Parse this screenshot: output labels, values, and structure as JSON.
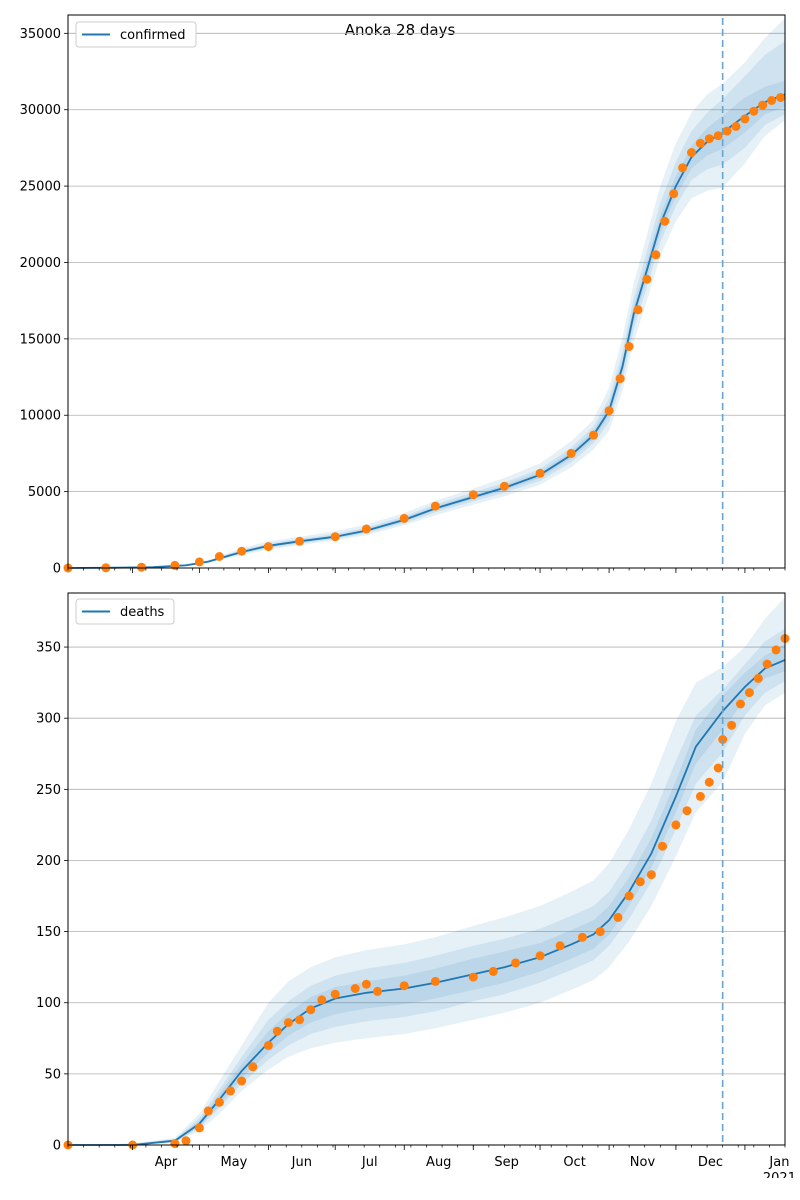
{
  "figure": {
    "title": "Anoka 28 days",
    "colors": {
      "line": "#1f77b4",
      "points": "#ff7f0e",
      "band": "#1f77b4",
      "vline": "#6aa3cc",
      "grid": "#b0b0b0"
    }
  },
  "chart_data": [
    {
      "type": "line",
      "legend": "confirmed",
      "legend_location": "upper left",
      "grid": "horizontal",
      "xlim": [
        "2020-03-03",
        "2021-01-19"
      ],
      "ylim": [
        0,
        36200
      ],
      "yticks": [
        0,
        5000,
        10000,
        15000,
        20000,
        25000,
        30000,
        35000
      ],
      "xticks": [],
      "forecast_start": "2020-12-22",
      "model_line": {
        "x": [
          "2020-03-03",
          "2020-03-25",
          "2020-04-10",
          "2020-04-25",
          "2020-05-05",
          "2020-05-20",
          "2020-06-01",
          "2020-06-15",
          "2020-07-01",
          "2020-07-15",
          "2020-08-01",
          "2020-08-15",
          "2020-09-01",
          "2020-09-15",
          "2020-10-01",
          "2020-10-15",
          "2020-10-25",
          "2020-11-01",
          "2020-11-07",
          "2020-11-12",
          "2020-11-18",
          "2020-11-24",
          "2020-12-01",
          "2020-12-08",
          "2020-12-15",
          "2020-12-22",
          "2021-01-01",
          "2021-01-10",
          "2021-01-19"
        ],
        "y": [
          0,
          20,
          60,
          180,
          420,
          1050,
          1450,
          1750,
          2050,
          2450,
          3150,
          3900,
          4650,
          5250,
          6100,
          7400,
          8700,
          10300,
          13200,
          16600,
          19500,
          22500,
          25000,
          26900,
          27900,
          28500,
          29600,
          30500,
          31000
        ]
      },
      "points": {
        "x": [
          "2020-03-03",
          "2020-03-20",
          "2020-04-05",
          "2020-04-20",
          "2020-05-01",
          "2020-05-10",
          "2020-05-20",
          "2020-06-01",
          "2020-06-15",
          "2020-07-01",
          "2020-07-15",
          "2020-08-01",
          "2020-08-15",
          "2020-09-01",
          "2020-09-15",
          "2020-10-01",
          "2020-10-15",
          "2020-10-25",
          "2020-11-01",
          "2020-11-06",
          "2020-11-10",
          "2020-11-14",
          "2020-11-18",
          "2020-11-22",
          "2020-11-26",
          "2020-11-30",
          "2020-12-04",
          "2020-12-08",
          "2020-12-12",
          "2020-12-16",
          "2020-12-20",
          "2020-12-24",
          "2020-12-28",
          "2021-01-01",
          "2021-01-05",
          "2021-01-09",
          "2021-01-13",
          "2021-01-17"
        ],
        "y": [
          0,
          10,
          50,
          170,
          400,
          750,
          1100,
          1400,
          1750,
          2050,
          2550,
          3250,
          4050,
          4800,
          5350,
          6200,
          7500,
          8700,
          10300,
          12400,
          14500,
          16900,
          18900,
          20500,
          22700,
          24500,
          26200,
          27200,
          27800,
          28100,
          28300,
          28600,
          28900,
          29400,
          29900,
          30300,
          30600,
          30800
        ]
      },
      "bands": [
        {
          "q": "2.5-97.5",
          "lower": [
            0,
            15,
            45,
            140,
            330,
            850,
            1200,
            1500,
            1800,
            2150,
            2800,
            3450,
            4150,
            4700,
            5450,
            6600,
            7750,
            9000,
            11600,
            14800,
            17500,
            20400,
            22700,
            24200,
            24700,
            24900,
            26500,
            28300,
            29300
          ],
          "upper": [
            0,
            30,
            80,
            230,
            520,
            1300,
            1750,
            2050,
            2400,
            2850,
            3600,
            4400,
            5200,
            5900,
            6850,
            8300,
            9700,
            11800,
            15100,
            18600,
            21800,
            25000,
            27800,
            29800,
            31000,
            31700,
            33100,
            34700,
            36000
          ]
        },
        {
          "q": "10-90",
          "lower": [
            0,
            17,
            50,
            155,
            370,
            920,
            1300,
            1600,
            1900,
            2280,
            2930,
            3640,
            4360,
            4930,
            5700,
            6920,
            8150,
            9550,
            12300,
            15600,
            18400,
            21300,
            23700,
            25400,
            26100,
            26400,
            27500,
            29000,
            29700
          ],
          "upper": [
            0,
            26,
            72,
            210,
            475,
            1190,
            1610,
            1910,
            2230,
            2650,
            3390,
            4170,
            4950,
            5590,
            6500,
            7880,
            9260,
            11100,
            14150,
            17650,
            20750,
            23900,
            26600,
            28600,
            29800,
            30700,
            32200,
            33600,
            34500
          ]
        },
        {
          "q": "25-75",
          "lower": [
            0,
            18,
            55,
            168,
            395,
            985,
            1375,
            1675,
            1970,
            2360,
            3030,
            3770,
            4500,
            5080,
            5900,
            7160,
            8420,
            9930,
            12750,
            16100,
            18950,
            21900,
            24350,
            26150,
            27000,
            27450,
            28500,
            29700,
            30200
          ],
          "upper": [
            0,
            22,
            66,
            195,
            450,
            1120,
            1530,
            1830,
            2130,
            2550,
            3270,
            4040,
            4800,
            5420,
            6300,
            7640,
            8980,
            10700,
            13650,
            17100,
            20050,
            23100,
            25650,
            27650,
            28800,
            29600,
            30800,
            31500,
            31900
          ]
        }
      ]
    },
    {
      "type": "line",
      "legend": "deaths",
      "legend_location": "upper left",
      "grid": "horizontal",
      "xlim": [
        "2020-03-03",
        "2021-01-19"
      ],
      "ylim": [
        0,
        388
      ],
      "yticks": [
        0,
        50,
        100,
        150,
        200,
        250,
        300,
        350
      ],
      "xticks": [
        "Apr",
        "May",
        "Jun",
        "Jul",
        "Aug",
        "Sep",
        "Oct",
        "Nov",
        "Dec",
        "Jan"
      ],
      "xtick_dates": [
        "2020-04-01",
        "2020-05-01",
        "2020-06-01",
        "2020-07-01",
        "2020-08-01",
        "2020-09-01",
        "2020-10-01",
        "2020-11-01",
        "2020-12-01",
        "2021-01-01"
      ],
      "year_label": "2021",
      "forecast_start": "2020-12-22",
      "model_line": {
        "x": [
          "2020-03-03",
          "2020-04-01",
          "2020-04-20",
          "2020-05-01",
          "2020-05-10",
          "2020-05-20",
          "2020-06-01",
          "2020-06-10",
          "2020-06-20",
          "2020-07-01",
          "2020-07-15",
          "2020-08-01",
          "2020-08-15",
          "2020-09-01",
          "2020-09-15",
          "2020-10-01",
          "2020-10-15",
          "2020-10-25",
          "2020-11-01",
          "2020-11-10",
          "2020-11-20",
          "2020-12-01",
          "2020-12-10",
          "2020-12-22",
          "2021-01-01",
          "2021-01-10",
          "2021-01-19"
        ],
        "y": [
          0,
          0,
          3,
          15,
          32,
          52,
          72,
          85,
          96,
          103,
          107,
          110,
          114,
          120,
          125,
          132,
          141,
          148,
          158,
          178,
          205,
          245,
          280,
          305,
          322,
          335,
          341
        ]
      },
      "points": {
        "x": [
          "2020-03-03",
          "2020-04-01",
          "2020-04-20",
          "2020-04-25",
          "2020-05-01",
          "2020-05-05",
          "2020-05-10",
          "2020-05-15",
          "2020-05-20",
          "2020-05-25",
          "2020-06-01",
          "2020-06-05",
          "2020-06-10",
          "2020-06-15",
          "2020-06-20",
          "2020-06-25",
          "2020-07-01",
          "2020-07-10",
          "2020-07-15",
          "2020-07-20",
          "2020-08-01",
          "2020-08-15",
          "2020-09-01",
          "2020-09-10",
          "2020-09-20",
          "2020-10-01",
          "2020-10-10",
          "2020-10-20",
          "2020-10-28",
          "2020-11-05",
          "2020-11-10",
          "2020-11-15",
          "2020-11-20",
          "2020-11-25",
          "2020-12-01",
          "2020-12-06",
          "2020-12-12",
          "2020-12-16",
          "2020-12-20",
          "2020-12-22",
          "2020-12-26",
          "2020-12-30",
          "2021-01-03",
          "2021-01-07",
          "2021-01-11",
          "2021-01-15",
          "2021-01-19"
        ],
        "y": [
          0,
          0,
          1,
          3,
          12,
          24,
          30,
          38,
          45,
          55,
          70,
          80,
          86,
          88,
          95,
          102,
          106,
          110,
          113,
          108,
          112,
          115,
          118,
          122,
          128,
          133,
          140,
          146,
          150,
          160,
          175,
          185,
          190,
          210,
          225,
          235,
          245,
          255,
          265,
          285,
          295,
          310,
          318,
          328,
          338,
          348,
          356
        ]
      },
      "bands": [
        {
          "q": "2.5-97.5",
          "lower": [
            0,
            0,
            2,
            10,
            22,
            38,
            53,
            62,
            68,
            72,
            75,
            78,
            82,
            88,
            93,
            100,
            109,
            116,
            125,
            143,
            168,
            203,
            234,
            255,
            289,
            309,
            318
          ],
          "upper": [
            0,
            1,
            5,
            22,
            45,
            70,
            100,
            115,
            125,
            132,
            137,
            141,
            146,
            154,
            160,
            168,
            178,
            186,
            198,
            222,
            254,
            298,
            325,
            336,
            350,
            370,
            385
          ]
        },
        {
          "q": "10-90",
          "lower": [
            0,
            0,
            2,
            12,
            26,
            43,
            60,
            70,
            78,
            83,
            87,
            90,
            94,
            101,
            106,
            114,
            123,
            130,
            140,
            159,
            185,
            222,
            254,
            276,
            302,
            318,
            326
          ],
          "upper": [
            0,
            1,
            4,
            19,
            39,
            62,
            88,
            101,
            112,
            119,
            124,
            128,
            133,
            140,
            145,
            152,
            161,
            168,
            178,
            199,
            228,
            270,
            302,
            320,
            338,
            354,
            363
          ]
        },
        {
          "q": "25-75",
          "lower": [
            0,
            0,
            2,
            13,
            28,
            47,
            65,
            77,
            86,
            92,
            96,
            99,
            103,
            109,
            114,
            122,
            131,
            138,
            148,
            168,
            195,
            234,
            268,
            292,
            313,
            328,
            333
          ],
          "upper": [
            0,
            1,
            4,
            17,
            36,
            57,
            80,
            93,
            104,
            111,
            115,
            119,
            124,
            131,
            136,
            142,
            151,
            158,
            168,
            188,
            216,
            256,
            292,
            316,
            332,
            344,
            352
          ]
        }
      ]
    }
  ]
}
